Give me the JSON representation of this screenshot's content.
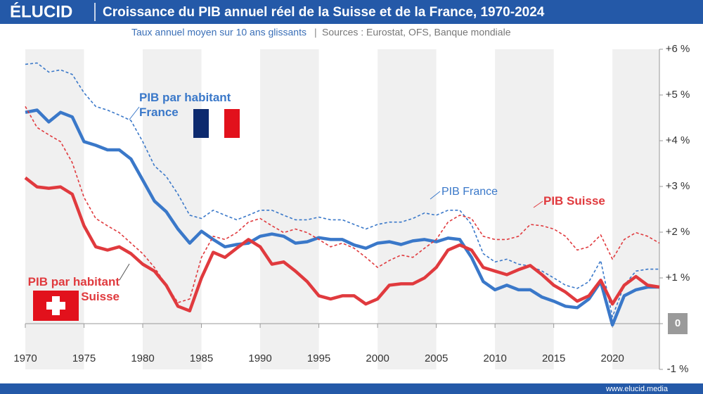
{
  "brand": "ÉLUCID",
  "footer": "www.elucid.media",
  "chart_data": {
    "type": "line",
    "title": "Croissance du PIB annuel réel de la Suisse et de la France, 1970-2024",
    "subtitle": "Taux annuel moyen sur 10 ans glissants",
    "source": "Sources : Eurostat, OFS, Banque mondiale",
    "x": [
      1970,
      1971,
      1972,
      1973,
      1974,
      1975,
      1976,
      1977,
      1978,
      1979,
      1980,
      1981,
      1982,
      1983,
      1984,
      1985,
      1986,
      1987,
      1988,
      1989,
      1990,
      1991,
      1992,
      1993,
      1994,
      1995,
      1996,
      1997,
      1998,
      1999,
      2000,
      2001,
      2002,
      2003,
      2004,
      2005,
      2006,
      2007,
      2008,
      2009,
      2010,
      2011,
      2012,
      2013,
      2014,
      2015,
      2016,
      2017,
      2018,
      2019,
      2020,
      2021,
      2022,
      2023,
      2024
    ],
    "xlim": [
      1970,
      2024
    ],
    "xticks": [
      1970,
      1975,
      1980,
      1985,
      1990,
      1995,
      2000,
      2005,
      2010,
      2015,
      2020
    ],
    "ylim": [
      -1,
      6
    ],
    "yticks": [
      {
        "value": -1,
        "label": "-1 %"
      },
      0,
      {
        "value": 1,
        "label": "+1 %"
      },
      {
        "value": 2,
        "label": "+2 %"
      },
      {
        "value": 3,
        "label": "+3 %"
      },
      {
        "value": 4,
        "label": "+4 %"
      },
      {
        "value": 5,
        "label": "+5 %"
      },
      {
        "value": 6,
        "label": "+6 %"
      }
    ],
    "series": [
      {
        "name": "PIB France",
        "color": "#3a78c9",
        "dashed": true,
        "values": [
          5.67,
          5.7,
          5.5,
          5.55,
          5.45,
          5.05,
          4.75,
          4.67,
          4.56,
          4.44,
          3.98,
          3.45,
          3.22,
          2.83,
          2.37,
          2.3,
          2.48,
          2.37,
          2.27,
          2.37,
          2.48,
          2.48,
          2.37,
          2.27,
          2.27,
          2.33,
          2.27,
          2.27,
          2.17,
          2.07,
          2.17,
          2.22,
          2.22,
          2.3,
          2.42,
          2.37,
          2.48,
          2.48,
          2.17,
          1.53,
          1.35,
          1.41,
          1.3,
          1.26,
          1.15,
          1.0,
          0.84,
          0.77,
          0.92,
          1.38,
          0.15,
          0.84,
          1.15,
          1.19,
          1.19
        ]
      },
      {
        "name": "PIB par habitant France",
        "color": "#3a78c9",
        "dashed": false,
        "values": [
          4.62,
          4.67,
          4.41,
          4.62,
          4.52,
          3.98,
          3.9,
          3.8,
          3.8,
          3.6,
          3.14,
          2.68,
          2.45,
          2.07,
          1.76,
          2.02,
          1.84,
          1.68,
          1.73,
          1.76,
          1.91,
          1.96,
          1.91,
          1.76,
          1.79,
          1.88,
          1.84,
          1.84,
          1.72,
          1.65,
          1.76,
          1.79,
          1.73,
          1.81,
          1.84,
          1.79,
          1.87,
          1.84,
          1.45,
          0.92,
          0.74,
          0.84,
          0.74,
          0.74,
          0.58,
          0.49,
          0.38,
          0.35,
          0.54,
          0.92,
          -0.03,
          0.61,
          0.74,
          0.8,
          0.8
        ]
      },
      {
        "name": "PIB Suisse",
        "color": "#e03a3e",
        "dashed": true,
        "values": [
          4.75,
          4.29,
          4.13,
          3.98,
          3.52,
          2.76,
          2.3,
          2.14,
          1.99,
          1.76,
          1.53,
          1.23,
          0.84,
          0.46,
          0.54,
          1.45,
          1.91,
          1.84,
          1.99,
          2.22,
          2.3,
          2.14,
          1.99,
          2.07,
          1.99,
          1.84,
          1.68,
          1.76,
          1.65,
          1.45,
          1.23,
          1.38,
          1.5,
          1.45,
          1.65,
          1.84,
          2.22,
          2.37,
          2.3,
          1.91,
          1.84,
          1.84,
          1.91,
          2.17,
          2.14,
          2.07,
          1.91,
          1.61,
          1.68,
          1.94,
          1.41,
          1.84,
          1.99,
          1.91,
          1.76
        ]
      },
      {
        "name": "PIB par habitant Suisse",
        "color": "#e03a3e",
        "dashed": false,
        "values": [
          3.19,
          2.99,
          2.96,
          2.99,
          2.83,
          2.14,
          1.68,
          1.61,
          1.68,
          1.53,
          1.3,
          1.15,
          0.84,
          0.38,
          0.28,
          1.0,
          1.56,
          1.45,
          1.65,
          1.84,
          1.68,
          1.3,
          1.35,
          1.15,
          0.92,
          0.61,
          0.54,
          0.61,
          0.61,
          0.43,
          0.54,
          0.84,
          0.87,
          0.87,
          1.0,
          1.23,
          1.61,
          1.72,
          1.61,
          1.23,
          1.15,
          1.07,
          1.18,
          1.27,
          1.07,
          0.84,
          0.69,
          0.49,
          0.61,
          0.95,
          0.43,
          0.84,
          1.03,
          0.84,
          0.8
        ]
      }
    ]
  }
}
